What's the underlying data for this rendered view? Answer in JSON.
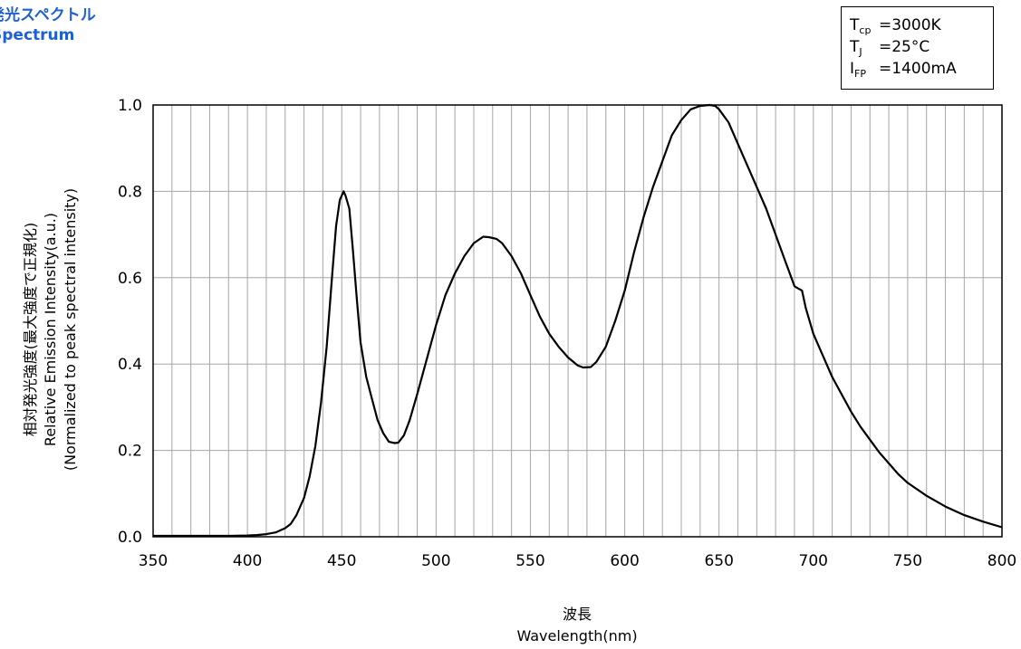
{
  "header": {
    "title_jp": "発光スペクトル",
    "title_en": "Spectrum"
  },
  "conditions": [
    {
      "symbol": "T",
      "sub": "cp",
      "value": "=3000K"
    },
    {
      "symbol": "T",
      "sub": "J",
      "value": "=25°C"
    },
    {
      "symbol": "I",
      "sub": "FP",
      "value": "=1400mA"
    }
  ],
  "chart_data": {
    "type": "line",
    "title": "",
    "xlabel_jp": "波長",
    "xlabel": "Wavelength(nm)",
    "ylabel_jp": "相対発光強度(最大強度で正規化)",
    "ylabel": "Relative Emission Intensity(a.u.)",
    "ylabel_note": "(Normalized to peak spectral intensity)",
    "xlim": [
      350,
      800
    ],
    "ylim": [
      0,
      1.0
    ],
    "x_ticks": [
      350,
      400,
      450,
      500,
      550,
      600,
      650,
      700,
      750,
      800
    ],
    "x_tick_labels": [
      "350",
      "400",
      "450",
      "500",
      "550",
      "600",
      "650",
      "700",
      "750",
      "800"
    ],
    "y_ticks": [
      0,
      0.2,
      0.4,
      0.6,
      0.8,
      1.0
    ],
    "y_tick_labels": [
      "0.0",
      "0.2",
      "0.4",
      "0.6",
      "0.8",
      "1.0"
    ],
    "x_grid_step": 10,
    "y_grid_step": 0.2,
    "grid": true,
    "line_color": "#000000",
    "grid_color": "#a6a6a6",
    "series": [
      {
        "x": [
          350,
          360,
          370,
          380,
          390,
          400,
          405,
          410,
          415,
          420,
          423,
          426,
          430,
          433,
          436,
          439,
          442,
          445,
          447,
          449,
          451,
          452,
          454,
          456,
          458,
          460,
          463,
          466,
          469,
          472,
          475,
          478,
          480,
          483,
          486,
          490,
          495,
          500,
          505,
          510,
          515,
          520,
          525,
          528,
          532,
          535,
          540,
          545,
          550,
          555,
          560,
          565,
          570,
          575,
          578,
          582,
          585,
          590,
          595,
          600,
          605,
          610,
          615,
          620,
          625,
          630,
          635,
          640,
          645,
          648,
          650,
          655,
          660,
          665,
          670,
          675,
          680,
          685,
          690,
          692,
          694,
          696,
          700,
          705,
          710,
          715,
          720,
          725,
          730,
          735,
          740,
          745,
          750,
          760,
          770,
          780,
          790,
          800
        ],
        "y": [
          0.002,
          0.002,
          0.002,
          0.002,
          0.002,
          0.003,
          0.004,
          0.006,
          0.01,
          0.02,
          0.03,
          0.05,
          0.09,
          0.14,
          0.21,
          0.31,
          0.44,
          0.61,
          0.72,
          0.78,
          0.8,
          0.79,
          0.76,
          0.66,
          0.55,
          0.45,
          0.37,
          0.32,
          0.27,
          0.24,
          0.22,
          0.217,
          0.218,
          0.235,
          0.27,
          0.33,
          0.41,
          0.49,
          0.56,
          0.61,
          0.65,
          0.68,
          0.695,
          0.694,
          0.69,
          0.68,
          0.65,
          0.61,
          0.56,
          0.51,
          0.47,
          0.44,
          0.415,
          0.397,
          0.392,
          0.393,
          0.405,
          0.44,
          0.5,
          0.57,
          0.66,
          0.74,
          0.81,
          0.87,
          0.93,
          0.965,
          0.99,
          0.998,
          1.0,
          0.998,
          0.99,
          0.96,
          0.91,
          0.86,
          0.81,
          0.76,
          0.7,
          0.64,
          0.58,
          0.575,
          0.57,
          0.53,
          0.47,
          0.42,
          0.37,
          0.33,
          0.29,
          0.255,
          0.225,
          0.195,
          0.17,
          0.145,
          0.125,
          0.095,
          0.07,
          0.05,
          0.035,
          0.022
        ]
      }
    ]
  }
}
